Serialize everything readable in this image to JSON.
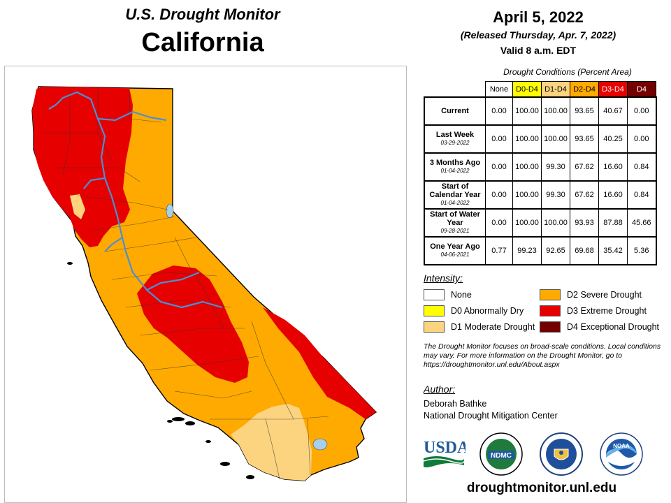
{
  "header": {
    "subtitle": "U.S. Drought Monitor",
    "region": "California",
    "date": "April 5, 2022",
    "released": "(Released Thursday, Apr. 7, 2022)",
    "valid": "Valid 8 a.m. EDT"
  },
  "table": {
    "caption": "Drought Conditions (Percent Area)",
    "columns": [
      "None",
      "D0-D4",
      "D1-D4",
      "D2-D4",
      "D3-D4",
      "D4"
    ],
    "rows": [
      {
        "label": "Current",
        "sub": "",
        "values": [
          "0.00",
          "100.00",
          "100.00",
          "93.65",
          "40.67",
          "0.00"
        ]
      },
      {
        "label": "Last Week",
        "sub": "03-29-2022",
        "values": [
          "0.00",
          "100.00",
          "100.00",
          "93.65",
          "40.25",
          "0.00"
        ]
      },
      {
        "label": "3 Months Ago",
        "sub": "01-04-2022",
        "values": [
          "0.00",
          "100.00",
          "99.30",
          "67.62",
          "16.60",
          "0.84"
        ]
      },
      {
        "label": "Start of Calendar Year",
        "sub": "01-04-2022",
        "values": [
          "0.00",
          "100.00",
          "99.30",
          "67.62",
          "16.60",
          "0.84"
        ]
      },
      {
        "label": "Start of Water Year",
        "sub": "09-28-2021",
        "values": [
          "0.00",
          "100.00",
          "100.00",
          "93.93",
          "87.88",
          "45.66"
        ]
      },
      {
        "label": "One Year Ago",
        "sub": "04-06-2021",
        "values": [
          "0.77",
          "99.23",
          "92.65",
          "69.68",
          "35.42",
          "5.36"
        ]
      }
    ]
  },
  "legend": {
    "title": "Intensity:",
    "items": [
      {
        "label": "None",
        "color": "#ffffff"
      },
      {
        "label": "D0 Abnormally Dry",
        "color": "#ffff00"
      },
      {
        "label": "D1 Moderate Drought",
        "color": "#fcd37f"
      },
      {
        "label": "D2 Severe Drought",
        "color": "#ffaa00"
      },
      {
        "label": "D3 Extreme Drought",
        "color": "#e60000"
      },
      {
        "label": "D4 Exceptional Drought",
        "color": "#730000"
      }
    ]
  },
  "note": "The Drought Monitor focuses on broad-scale conditions. Local conditions may vary. For more information on the Drought Monitor, go to https://droughtmonitor.unl.edu/About.aspx",
  "author": {
    "title": "Author:",
    "name": "Deborah Bathke",
    "org": "National Drought Mitigation Center"
  },
  "logos": {
    "usda": "USDA",
    "ndmc": "NDMC",
    "noaa": "NOAA"
  },
  "map": {
    "colors": {
      "d1": "#fcd37f",
      "d2": "#ffaa00",
      "d3": "#e60000",
      "water": "#5b9bd5",
      "lake": "#a6d0ea"
    }
  },
  "footer": {
    "url": "droughtmonitor.unl.edu"
  }
}
